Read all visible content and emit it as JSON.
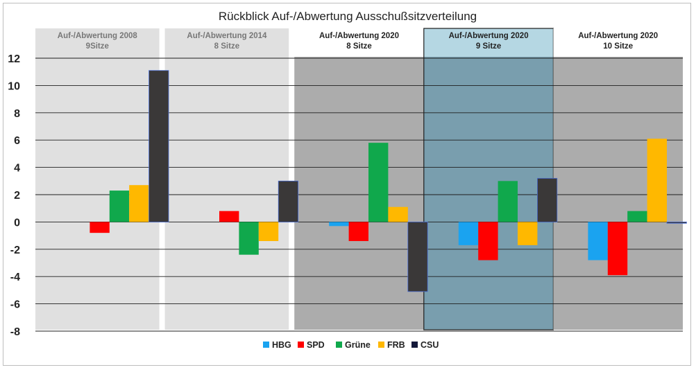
{
  "chart_data": {
    "type": "bar",
    "title": "Rückblick Auf-/Abwertung Ausschußsitzverteilung",
    "ylim": [
      -8,
      12
    ],
    "yticks": [
      -8,
      -6,
      -4,
      -2,
      0,
      2,
      4,
      6,
      8,
      10,
      12
    ],
    "grid": true,
    "legend_position": "bottom",
    "panels": [
      {
        "title": "Auf-/Abwertung 2008",
        "subtitle": "9Sitze",
        "background": "#e0e0e0",
        "header_background": "#e0e0e0",
        "label_color": "#777777"
      },
      {
        "title": "Auf-/Abwertung 2014",
        "subtitle": "8 Sitze",
        "background": "#e0e0e0",
        "header_background": "#e0e0e0",
        "label_color": "#777777"
      },
      {
        "title": "Auf-/Abwertung 2020",
        "subtitle": "8 Sitze",
        "background": "#acacac",
        "header_background": "#ffffff",
        "label_color": "#222222"
      },
      {
        "title": "Auf-/Abwertung 2020",
        "subtitle": "9 Sitze",
        "background": "#799eae",
        "header_background": "#b5d7e3",
        "label_color": "#222222",
        "highlighted": true
      },
      {
        "title": "Auf-/Abwertung 2020",
        "subtitle": "10 Sitze",
        "background": "#acacac",
        "header_background": "#ffffff",
        "label_color": "#222222"
      }
    ],
    "series": [
      {
        "name": "HBG",
        "color": "#1aa3f0",
        "values": [
          null,
          null,
          -0.3,
          -1.7,
          -2.8
        ]
      },
      {
        "name": "SPD",
        "color": "#ff0000",
        "values": [
          -0.8,
          0.8,
          -1.4,
          -2.8,
          -3.9
        ]
      },
      {
        "name": "Grüne",
        "color": "#10a84c",
        "values": [
          2.3,
          -2.4,
          5.8,
          3.0,
          0.8
        ]
      },
      {
        "name": "FRB",
        "color": "#ffb800",
        "values": [
          2.7,
          -1.4,
          1.1,
          -1.7,
          6.1
        ]
      },
      {
        "name": "CSU",
        "color": "#3a3838",
        "legend_color": "#14193a",
        "values": [
          11.1,
          3.0,
          -5.1,
          3.2,
          -0.1
        ]
      }
    ]
  }
}
